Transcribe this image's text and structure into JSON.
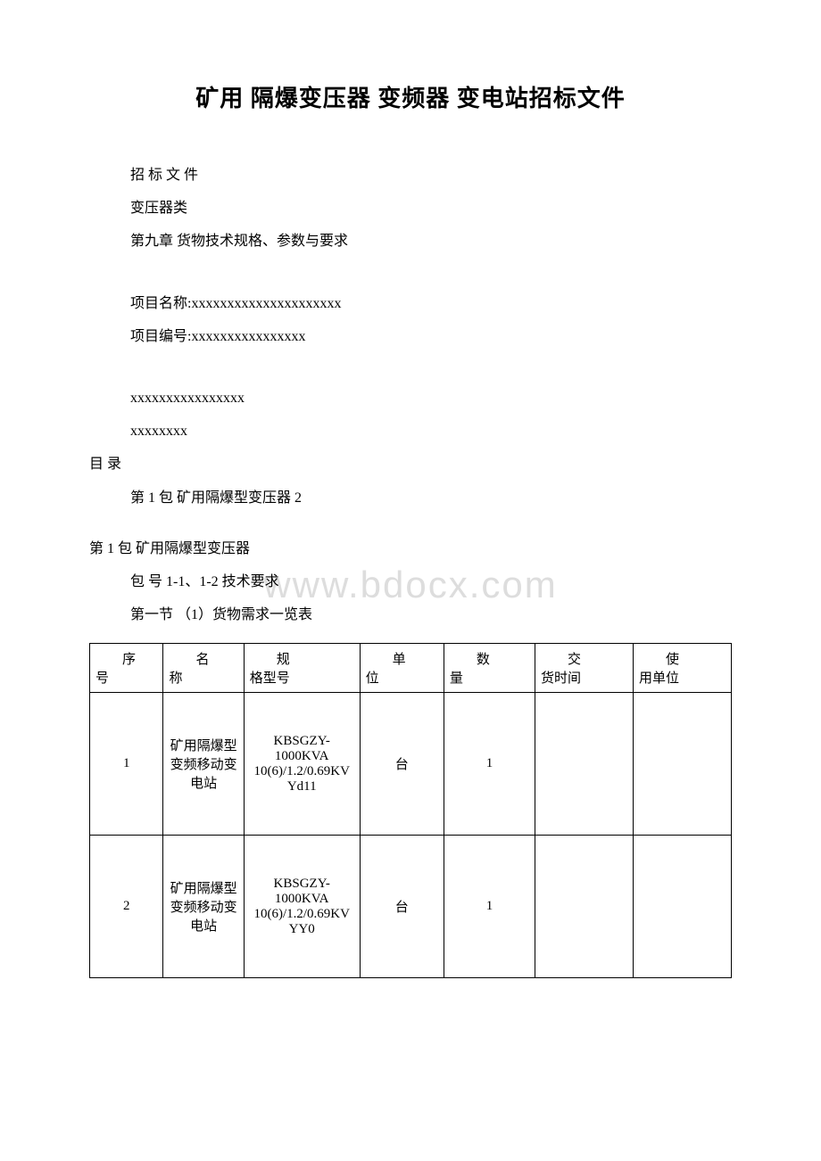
{
  "title": "矿用 隔爆变压器 变频器 变电站招标文件",
  "lines": {
    "l1": "招 标 文 件",
    "l2": "变压器类",
    "l3": "第九章 货物技术规格、参数与要求",
    "l4": "项目名称:xxxxxxxxxxxxxxxxxxxxx",
    "l5": "项目编号:xxxxxxxxxxxxxxxx",
    "l6": "xxxxxxxxxxxxxxxx",
    "l7": "xxxxxxxx",
    "l8": "目 录",
    "l9": "第 1 包 矿用隔爆型变压器 2",
    "l10": "第 1 包 矿用隔爆型变压器",
    "l11": "包 号 1-1、1-2 技术要求",
    "l12": "第一节 （1）货物需求一览表"
  },
  "watermark": "www.bdocx.com",
  "table": {
    "headers": {
      "c1a": "序",
      "c1b": "号",
      "c2a": "名",
      "c2b": "称",
      "c3a": "规",
      "c3b": "格型号",
      "c4a": "单",
      "c4b": "位",
      "c5a": "数",
      "c5b": "量",
      "c6a": "交",
      "c6b": "货时间",
      "c7a": "使",
      "c7b": "用单位"
    },
    "rows": [
      {
        "c1": "1",
        "c2": "矿用隔爆型变频移动变电站",
        "c3": "KBSGZY-1000KVA 10(6)/1.2/0.69KV Yd11",
        "c4": "台",
        "c5": "1",
        "c6": "",
        "c7": ""
      },
      {
        "c1": "2",
        "c2": "矿用隔爆型变频移动变电站",
        "c3": "KBSGZY-1000KVA 10(6)/1.2/0.69KV YY0",
        "c4": "台",
        "c5": "1",
        "c6": "",
        "c7": ""
      }
    ],
    "styles": {
      "border_color": "#000000",
      "font_size": 15,
      "header_indent": "2em"
    }
  },
  "style": {
    "background": "#ffffff",
    "watermark_color": "#dddddd",
    "text_color": "#000000",
    "title_fontsize": 26,
    "body_fontsize": 16
  }
}
